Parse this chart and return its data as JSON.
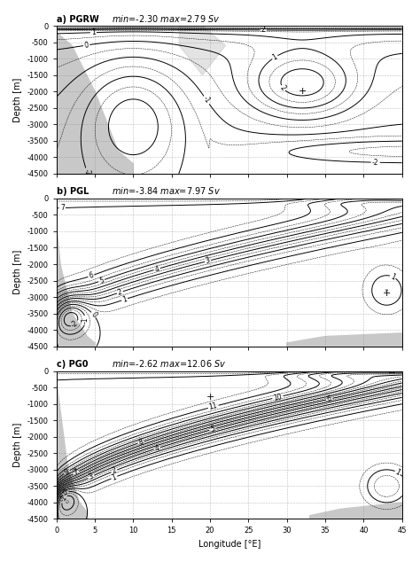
{
  "panels": [
    {
      "label": "a)",
      "title": "PGRW",
      "min_val": -2.3,
      "max_val": 2.79,
      "unit": "Sv",
      "pattern": "PGRW",
      "plus_lon": 32.0,
      "plus_dep": -2000.0
    },
    {
      "label": "b)",
      "title": "PGL",
      "min_val": -3.84,
      "max_val": 7.97,
      "unit": "Sv",
      "pattern": "PGL",
      "plus_lon": 43.0,
      "plus_dep": -2900.0
    },
    {
      "label": "c)",
      "title": "PG0",
      "min_val": -2.62,
      "max_val": 12.06,
      "unit": "Sv",
      "pattern": "PG0",
      "plus_lon": 20.0,
      "plus_dep": -800.0
    }
  ],
  "lon_range": [
    0,
    45
  ],
  "depth_range": [
    -4500,
    0
  ],
  "xlabel": "Longitude [°E]",
  "ylabel": "Depth [m]",
  "yticks": [
    0,
    -500,
    -1000,
    -1500,
    -2000,
    -2500,
    -3000,
    -3500,
    -4000,
    -4500
  ],
  "xticks": [
    0,
    5,
    10,
    15,
    20,
    25,
    30,
    35,
    40,
    45
  ],
  "land_color": "#c8c8c8",
  "fig_width": 4.74,
  "fig_height": 6.34,
  "dpi": 100
}
